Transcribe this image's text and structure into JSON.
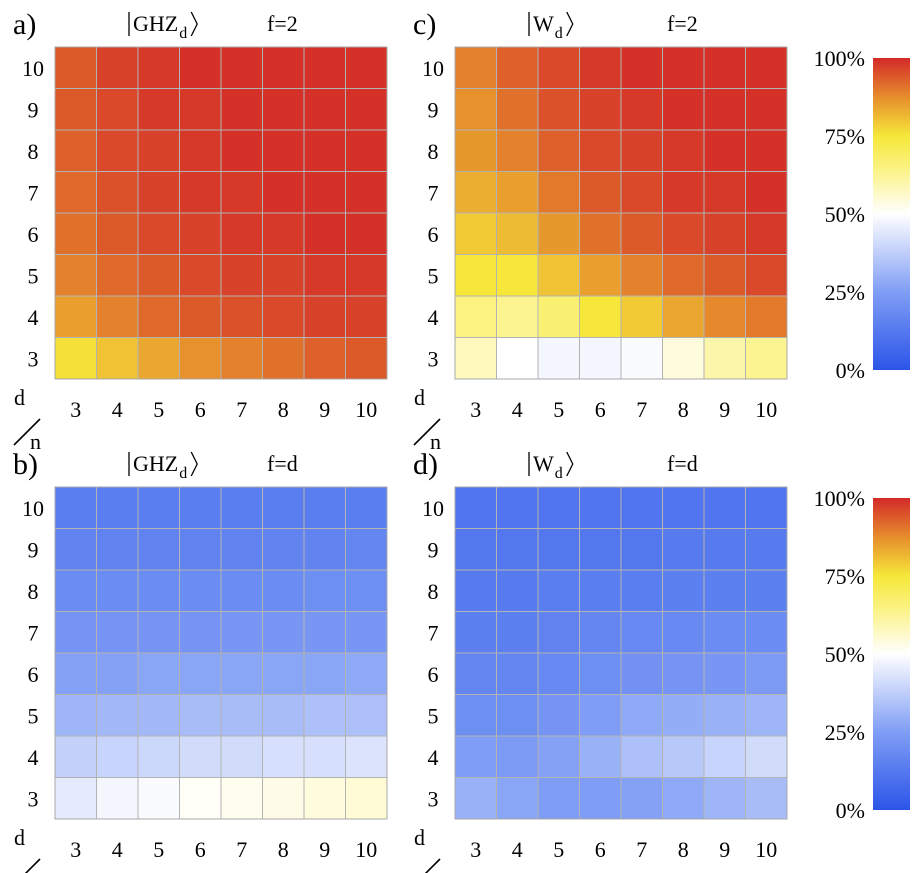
{
  "colors": {
    "scale_stops": [
      [
        0.0,
        "#2b55e8"
      ],
      [
        0.25,
        "#7f9df5"
      ],
      [
        0.5,
        "#ffffff"
      ],
      [
        0.65,
        "#fbf280"
      ],
      [
        0.75,
        "#f6e73a"
      ],
      [
        0.87,
        "#e6912c"
      ],
      [
        1.0,
        "#d42929"
      ]
    ],
    "cell_border": "#b3b3b3",
    "frame": "#a8a8a8"
  },
  "axis_corner": {
    "top": "d",
    "bottom": "n"
  },
  "colorbar_ticks": [
    "100%",
    "75%",
    "50%",
    "25%",
    "0%"
  ],
  "colorbar_tick_values": [
    100,
    75,
    50,
    25,
    0
  ],
  "chart_data": [
    {
      "type": "heatmap",
      "panel": "a)",
      "state": "GHZ",
      "subscript": "d",
      "param": "f=2",
      "x": [
        3,
        4,
        5,
        6,
        7,
        8,
        9,
        10
      ],
      "y": [
        3,
        4,
        5,
        6,
        7,
        8,
        9,
        10
      ],
      "xlabel": "n",
      "ylabel": "d",
      "zrange": [
        0,
        100
      ],
      "values": [
        [
          76,
          80,
          84,
          87,
          89,
          91,
          93,
          94
        ],
        [
          85,
          89,
          92,
          94,
          95,
          96,
          97,
          97
        ],
        [
          89,
          92,
          94,
          96,
          97,
          97,
          98,
          98
        ],
        [
          91,
          94,
          96,
          97,
          98,
          98,
          99,
          99
        ],
        [
          92,
          95,
          97,
          98,
          98,
          99,
          99,
          99
        ],
        [
          93,
          96,
          97,
          98,
          99,
          99,
          99,
          99
        ],
        [
          94,
          96,
          98,
          98,
          99,
          99,
          99,
          99
        ],
        [
          94,
          97,
          98,
          99,
          99,
          99,
          99,
          99
        ]
      ]
    },
    {
      "type": "heatmap",
      "panel": "c)",
      "state": "W",
      "subscript": "d",
      "param": "f=2",
      "x": [
        3,
        4,
        5,
        6,
        7,
        8,
        9,
        10
      ],
      "y": [
        3,
        4,
        5,
        6,
        7,
        8,
        9,
        10
      ],
      "xlabel": "n",
      "ylabel": "d",
      "zrange": [
        0,
        100
      ],
      "values": [
        [
          58,
          50,
          48,
          48,
          49,
          54,
          60,
          63
        ],
        [
          65,
          63,
          67,
          75,
          79,
          84,
          88,
          90
        ],
        [
          75,
          75,
          80,
          85,
          89,
          92,
          94,
          96
        ],
        [
          79,
          81,
          86,
          91,
          94,
          96,
          97,
          98
        ],
        [
          83,
          85,
          90,
          94,
          96,
          98,
          98,
          99
        ],
        [
          86,
          89,
          93,
          96,
          97,
          98,
          99,
          99
        ],
        [
          87,
          91,
          95,
          97,
          98,
          99,
          99,
          99
        ],
        [
          89,
          93,
          96,
          98,
          99,
          99,
          99,
          99
        ]
      ]
    },
    {
      "type": "heatmap",
      "panel": "b)",
      "state": "GHZ",
      "subscript": "d",
      "param": "f=d",
      "x": [
        3,
        4,
        5,
        6,
        7,
        8,
        9,
        10
      ],
      "y": [
        3,
        4,
        5,
        6,
        7,
        8,
        9,
        10
      ],
      "xlabel": "n",
      "ylabel": "d",
      "zrange": [
        0,
        100
      ],
      "values": [
        [
          45,
          48,
          49,
          51,
          52,
          53,
          54,
          55
        ],
        [
          38,
          39,
          40,
          41,
          41,
          42,
          42,
          43
        ],
        [
          31,
          32,
          32,
          33,
          33,
          33,
          34,
          34
        ],
        [
          26,
          26,
          27,
          27,
          27,
          27,
          27,
          28
        ],
        [
          22,
          22,
          22,
          22,
          23,
          23,
          23,
          23
        ],
        [
          19,
          19,
          19,
          19,
          19,
          19,
          20,
          20
        ],
        [
          16,
          16,
          16,
          16,
          16,
          16,
          16,
          17
        ],
        [
          14,
          14,
          14,
          14,
          14,
          14,
          14,
          14
        ]
      ]
    },
    {
      "type": "heatmap",
      "panel": "d)",
      "state": "W",
      "subscript": "d",
      "param": "f=d",
      "x": [
        3,
        4,
        5,
        6,
        7,
        8,
        9,
        10
      ],
      "y": [
        3,
        4,
        5,
        6,
        7,
        8,
        9,
        10
      ],
      "xlabel": "n",
      "ylabel": "d",
      "zrange": [
        0,
        100
      ],
      "values": [
        [
          30,
          27,
          25,
          25,
          26,
          28,
          31,
          33
        ],
        [
          25,
          24,
          26,
          30,
          34,
          36,
          39,
          41
        ],
        [
          20,
          20,
          22,
          25,
          28,
          29,
          30,
          31
        ],
        [
          17,
          17,
          18,
          20,
          21,
          22,
          23,
          24
        ],
        [
          15,
          15,
          16,
          17,
          18,
          18,
          19,
          19
        ],
        [
          13,
          13,
          14,
          14,
          14,
          15,
          15,
          15
        ],
        [
          12,
          12,
          12,
          12,
          12,
          13,
          13,
          13
        ],
        [
          11,
          11,
          11,
          11,
          11,
          11,
          11,
          11
        ]
      ]
    }
  ]
}
